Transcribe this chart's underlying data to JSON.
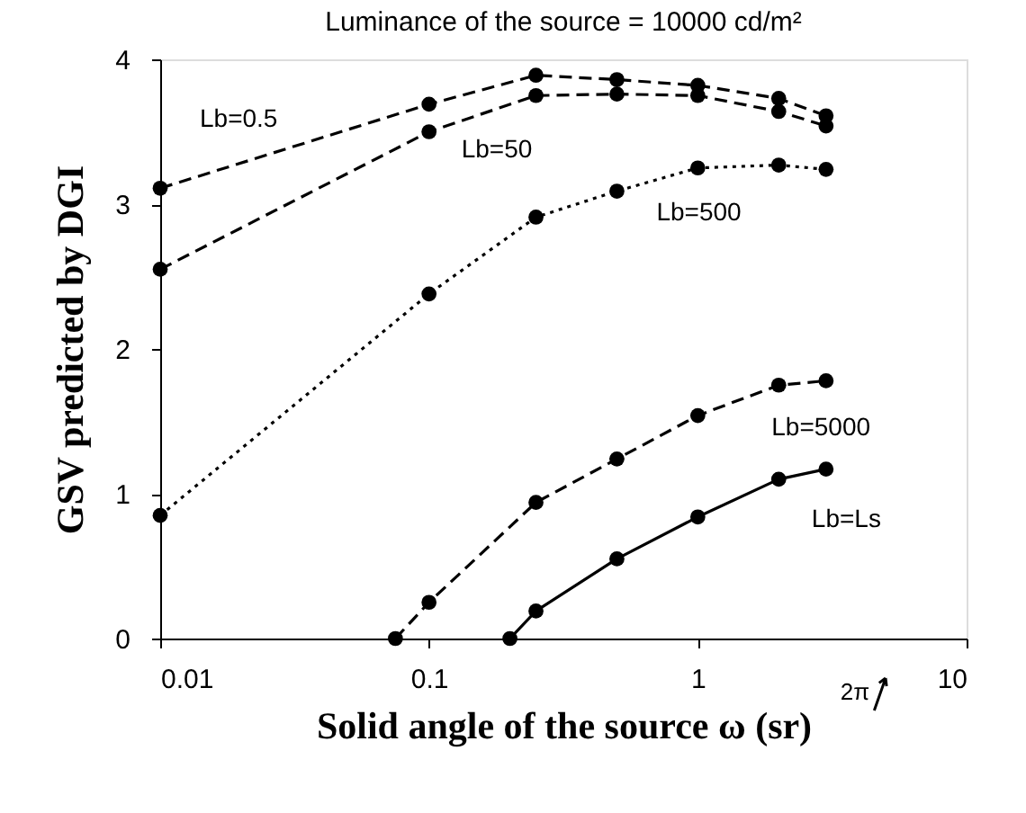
{
  "chart_data": {
    "type": "line",
    "title": "Luminance of the source = 10000 cd/m²",
    "xlabel": "Solid angle of the source ω (sr)",
    "ylabel": "GSV predicted by DGI",
    "log": "x",
    "xlim": [
      0.01,
      10
    ],
    "xticks": [
      0.01,
      0.1,
      1,
      10
    ],
    "ylim": [
      0,
      4
    ],
    "yticks": [
      0,
      1,
      2,
      3,
      4
    ],
    "grid": false,
    "marker": "circle",
    "series": [
      {
        "name": "Lb=0.5",
        "color": "#000000",
        "line_style": "dashed",
        "x": [
          0.01,
          0.1,
          0.25,
          0.5,
          1,
          2,
          3
        ],
        "values": [
          3.11,
          3.69,
          3.89,
          3.86,
          3.82,
          3.73,
          3.61
        ]
      },
      {
        "name": "Lb=50",
        "color": "#000000",
        "line_style": "dashed",
        "x": [
          0.01,
          0.1,
          0.25,
          0.5,
          1,
          2,
          3
        ],
        "values": [
          2.55,
          3.5,
          3.75,
          3.76,
          3.75,
          3.64,
          3.54
        ]
      },
      {
        "name": "Lb=500",
        "color": "#000000",
        "line_style": "dotted",
        "x": [
          0.01,
          0.1,
          0.25,
          0.5,
          1,
          2,
          3
        ],
        "values": [
          0.85,
          2.38,
          2.91,
          3.09,
          3.25,
          3.27,
          3.24
        ]
      },
      {
        "name": "Lb=5000",
        "color": "#000000",
        "line_style": "dashed",
        "x": [
          0.075,
          0.1,
          0.25,
          0.5,
          1,
          2,
          3
        ],
        "values": [
          0,
          0.25,
          0.94,
          1.24,
          1.54,
          1.75,
          1.78
        ]
      },
      {
        "name": "Lb=Ls",
        "color": "#000000",
        "line_style": "solid",
        "x": [
          0.2,
          0.25,
          0.5,
          1,
          2,
          3
        ],
        "values": [
          0,
          0.19,
          0.55,
          0.84,
          1.1,
          1.17
        ]
      }
    ],
    "annotations": [
      "2π"
    ]
  }
}
